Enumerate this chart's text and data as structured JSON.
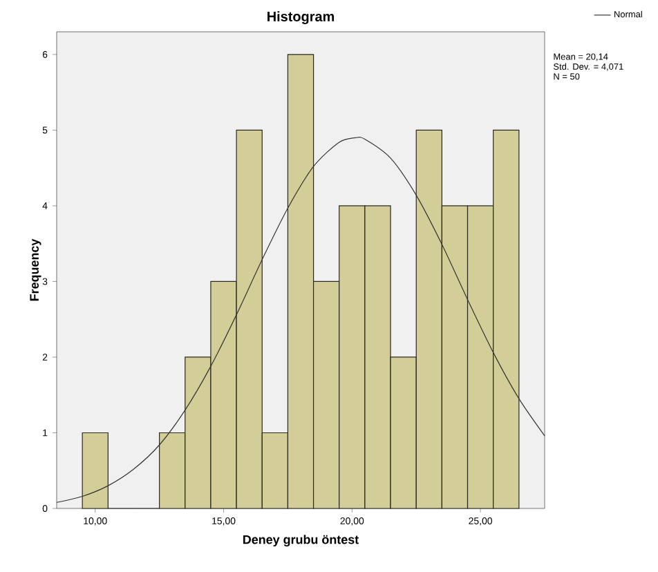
{
  "chart_data": {
    "type": "histogram",
    "title": "Histogram",
    "xlabel": "Deney grubu öntest",
    "ylabel": "Frequency",
    "bins": [
      9.5,
      10.5,
      11.5,
      12.5,
      13.5,
      14.5,
      15.5,
      16.5,
      17.5,
      18.5,
      19.5,
      20.5,
      21.5,
      22.5,
      23.5,
      24.5,
      25.5,
      26.5
    ],
    "values": [
      1,
      0,
      0,
      1,
      2,
      3,
      5,
      1,
      6,
      3,
      4,
      4,
      2,
      5,
      4,
      4,
      5
    ],
    "color": "#d3ce97",
    "xlim": [
      8.5,
      27.5
    ],
    "ylim": [
      0,
      6.3
    ],
    "xticks": [
      {
        "value": 10,
        "label": "10,00"
      },
      {
        "value": 15,
        "label": "15,00"
      },
      {
        "value": 20,
        "label": "20,00"
      },
      {
        "value": 25,
        "label": "25,00"
      }
    ],
    "yticks": [
      0,
      1,
      2,
      3,
      4,
      5,
      6
    ],
    "series": [
      {
        "name": "Normal",
        "type": "line",
        "color": "#333333",
        "x": [
          8.5,
          9.5,
          10.5,
          11.5,
          12.5,
          13.5,
          14.5,
          15.5,
          16.5,
          17.5,
          18.5,
          19.5,
          20.14,
          20.5,
          21.5,
          22.5,
          23.5,
          24.5,
          25.5,
          26.5,
          27.5
        ],
        "values": [
          0.08,
          0.16,
          0.3,
          0.52,
          0.84,
          1.3,
          1.88,
          2.56,
          3.29,
          3.97,
          4.52,
          4.84,
          4.9,
          4.88,
          4.63,
          4.14,
          3.49,
          2.76,
          2.06,
          1.45,
          0.96
        ]
      }
    ],
    "legend": "top right",
    "annotations": [
      "Mean = 20,14",
      "Std. Dev. = 4,071",
      "N = 50"
    ]
  }
}
